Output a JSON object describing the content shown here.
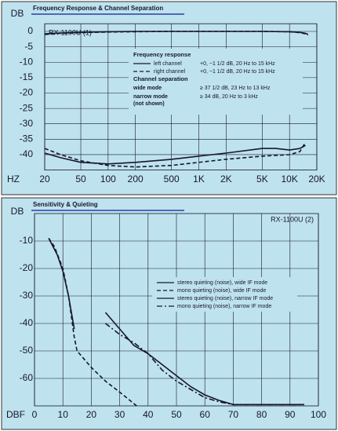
{
  "chart_data": [
    {
      "type": "line",
      "title": "Frequency Response & Channel Separation",
      "subtitle": "RX-1100U (1)",
      "x_label": "HZ",
      "y_label": "DB",
      "xscale": "log",
      "grid": true,
      "xlim": [
        20,
        20000
      ],
      "ylim": [
        -45,
        2.5
      ],
      "xticks": [
        20,
        50,
        100,
        200,
        500,
        {
          "value": 1000,
          "label": "1K"
        },
        {
          "value": 2000,
          "label": "2K"
        },
        {
          "value": 5000,
          "label": "5K"
        },
        {
          "value": 10000,
          "label": "10K"
        },
        {
          "value": 20000,
          "label": "20K"
        }
      ],
      "yticks": [
        0,
        -5,
        -10,
        -15,
        -20,
        -25,
        -30,
        -35,
        -40
      ],
      "legend_headings": [
        "Frequency response",
        "Channel separation"
      ],
      "legend_extra": [
        "narrow mode",
        "(not shown)",
        "≥ 34 dB, 20 Hz to 3 kHz"
      ],
      "series": [
        {
          "name": "left channel",
          "note": "+0, −1 1/2 dB, 20 Hz to 15 kHz",
          "style": "solid",
          "color": "#16182a",
          "x": [
            20,
            30,
            50,
            100,
            200,
            500,
            1000,
            2000,
            5000,
            10000,
            13000,
            15000,
            16000
          ],
          "values": [
            -0.8,
            -0.5,
            -0.3,
            -0.1,
            0,
            0,
            0,
            0,
            0,
            -0.1,
            -0.3,
            -0.6,
            -1
          ]
        },
        {
          "name": "right channel",
          "note": "+0, −1 1/2 dB, 20 Hz to 15 kHz",
          "style": "dashed",
          "color": "#16182a",
          "x": [
            20,
            30,
            50,
            100,
            200,
            500,
            1000,
            2000,
            5000,
            10000,
            13000,
            15000,
            16000
          ],
          "values": [
            -1,
            -0.6,
            -0.4,
            -0.2,
            -0.1,
            0,
            0,
            0,
            0,
            -0.1,
            -0.4,
            -0.8,
            -1.2
          ]
        },
        {
          "name": "wide mode",
          "note": "≥ 37 1/2 dB, 23 Hz to 13 kHz",
          "style": "solid",
          "color": "#16182a",
          "x": [
            20,
            30,
            50,
            100,
            200,
            500,
            1000,
            2000,
            5000,
            7000,
            10000,
            13000,
            15000
          ],
          "values": [
            -39.5,
            -41,
            -42.5,
            -43,
            -42.5,
            -41.5,
            -40.5,
            -39.5,
            -38,
            -38,
            -38.5,
            -38,
            -37
          ]
        },
        {
          "style": "dashed",
          "color": "#16182a",
          "x": [
            20,
            30,
            50,
            100,
            200,
            500,
            1000,
            2000,
            5000,
            10000,
            13000,
            15000
          ],
          "values": [
            -38,
            -40,
            -42,
            -43.5,
            -44,
            -43.5,
            -42.5,
            -41.5,
            -40.5,
            -40,
            -39,
            -36
          ]
        }
      ]
    },
    {
      "type": "line",
      "title": "Sensitivity & Quieting",
      "subtitle": "RX-1100U (2)",
      "x_label": "DBF",
      "y_label": "DB",
      "grid": true,
      "xlim": [
        0,
        100
      ],
      "ylim": [
        -70,
        0
      ],
      "xticks": [
        0,
        10,
        20,
        30,
        40,
        50,
        60,
        70,
        80,
        90,
        100
      ],
      "yticks": [
        -10,
        -20,
        -30,
        -40,
        -50,
        -60
      ],
      "series": [
        {
          "name": "stereo quieting (noise), wide IF mode",
          "style": "solid",
          "color": "#16182a",
          "x": [
            5,
            8,
            10,
            12,
            14
          ],
          "values": [
            -9,
            -15,
            -21,
            -30,
            -42
          ]
        },
        {
          "name": "mono quieting (noise), wide IF mode",
          "style": "dashed",
          "color": "#16182a",
          "x": [
            5,
            7,
            10,
            12,
            14,
            15,
            20,
            25,
            30,
            36
          ],
          "values": [
            -9,
            -12,
            -20,
            -30,
            -45,
            -50,
            -56,
            -61,
            -65,
            -70
          ]
        },
        {
          "name": "stereo quieting (noise), narrow IF mode",
          "style": "solid",
          "color": "#16182a",
          "x": [
            25,
            30,
            35,
            40,
            45,
            50,
            55,
            60,
            65,
            70,
            80,
            95
          ],
          "values": [
            -36,
            -42,
            -48,
            -51,
            -55,
            -59,
            -63,
            -66,
            -68,
            -69.5,
            -69.5,
            -69.5
          ]
        },
        {
          "name": "mono quieting (noise), narrow IF mode",
          "style": "dashdot",
          "color": "#16182a",
          "x": [
            25,
            30,
            35,
            40,
            45,
            50,
            55,
            60,
            65,
            70,
            95
          ],
          "values": [
            -40,
            -44,
            -47,
            -51,
            -57,
            -61,
            -64,
            -67,
            -68.5,
            -69.5,
            -69.5
          ]
        }
      ]
    }
  ]
}
